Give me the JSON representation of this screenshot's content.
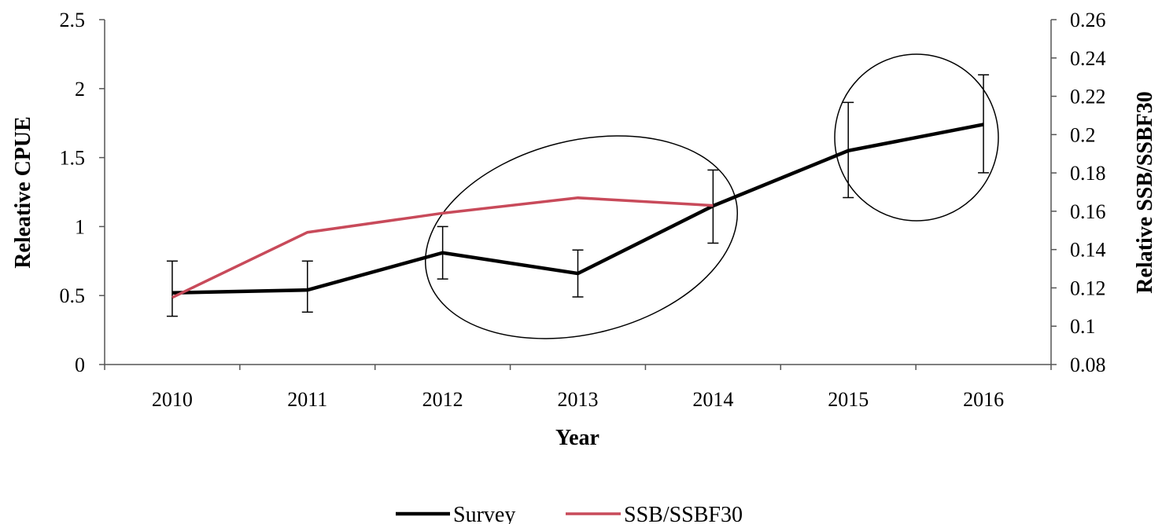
{
  "chart_data": {
    "type": "line",
    "title": "",
    "xlabel": "Year",
    "ylabel": "Releative CPUE",
    "y2label": "Relative SSB/SSBF30",
    "categories": [
      "2010",
      "2011",
      "2012",
      "2013",
      "2014",
      "2015",
      "2016"
    ],
    "ylim": [
      0,
      2.5
    ],
    "yticks": [
      "0",
      "0.5",
      "1",
      "1.5",
      "2",
      "2.5"
    ],
    "y2lim": [
      0.08,
      0.26
    ],
    "y2ticks": [
      "0.08",
      "0.1",
      "0.12",
      "0.14",
      "0.16",
      "0.18",
      "0.2",
      "0.22",
      "0.24",
      "0.26"
    ],
    "series": [
      {
        "name": "Survey",
        "axis": "left",
        "color": "#000000",
        "values": [
          0.52,
          0.54,
          0.81,
          0.66,
          1.15,
          1.55,
          1.74
        ],
        "error_low": [
          0.35,
          0.38,
          0.62,
          0.49,
          0.88,
          1.21,
          1.39
        ],
        "error_high": [
          0.75,
          0.75,
          1.0,
          0.83,
          1.41,
          1.9,
          2.1
        ]
      },
      {
        "name": "SSB/SSBF30",
        "axis": "right",
        "color": "#c84a5a",
        "values": [
          0.115,
          0.149,
          0.159,
          0.167,
          0.163,
          null,
          null
        ]
      }
    ],
    "annotations": [
      {
        "shape": "ellipse",
        "label": "",
        "around": [
          "2012",
          "2014"
        ]
      },
      {
        "shape": "ellipse",
        "label": "",
        "around": [
          "2015",
          "2016"
        ]
      }
    ],
    "legend": {
      "position": "bottom-center"
    },
    "grid": false
  }
}
